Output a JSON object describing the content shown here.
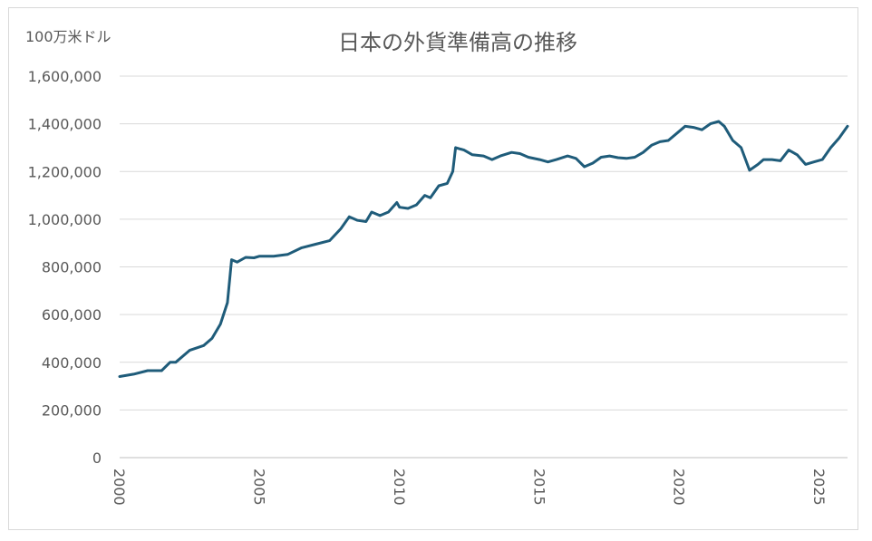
{
  "chart_data": {
    "type": "line",
    "title": "日本の外貨準備高の推移",
    "unit_label": "100万米ドル",
    "xlim": [
      2000,
      2026
    ],
    "ylim": [
      0,
      1600000
    ],
    "y_ticks": [
      "1,600,000",
      "1,400,000",
      "1,200,000",
      "1,000,000",
      "800,000",
      "600,000",
      "400,000",
      "200,000",
      "0"
    ],
    "y_tick_values": [
      1600000,
      1400000,
      1200000,
      1000000,
      800000,
      600000,
      400000,
      200000,
      0
    ],
    "x_ticks": [
      "2000",
      "2005",
      "2010",
      "2015",
      "2020",
      "2025"
    ],
    "x_tick_values": [
      2000,
      2005,
      2010,
      2015,
      2020,
      2025
    ],
    "grid": true,
    "series_color": "#1f5c7a",
    "series": [
      {
        "x": [
          2000.0,
          2000.5,
          2001.0,
          2001.5,
          2001.8,
          2002.0,
          2002.5,
          2003.0,
          2003.3,
          2003.6,
          2003.85,
          2004.0,
          2004.2,
          2004.5,
          2004.8,
          2005.0,
          2005.5,
          2006.0,
          2006.5,
          2007.0,
          2007.5,
          2007.9,
          2008.2,
          2008.5,
          2008.8,
          2009.0,
          2009.3,
          2009.6,
          2009.9,
          2010.0,
          2010.3,
          2010.6,
          2010.9,
          2011.1,
          2011.4,
          2011.7,
          2011.9,
          2012.0,
          2012.3,
          2012.6,
          2013.0,
          2013.3,
          2013.6,
          2014.0,
          2014.3,
          2014.6,
          2015.0,
          2015.3,
          2015.6,
          2016.0,
          2016.3,
          2016.6,
          2016.9,
          2017.2,
          2017.5,
          2017.8,
          2018.1,
          2018.4,
          2018.7,
          2019.0,
          2019.3,
          2019.6,
          2019.9,
          2020.2,
          2020.5,
          2020.8,
          2021.1,
          2021.4,
          2021.6,
          2021.9,
          2022.2,
          2022.5,
          2022.8,
          2023.0,
          2023.3,
          2023.6,
          2023.9,
          2024.2,
          2024.5,
          2024.8,
          2025.1,
          2025.4,
          2025.7,
          2026.0
        ],
        "y": [
          340000,
          350000,
          365000,
          365000,
          400000,
          400000,
          450000,
          470000,
          500000,
          560000,
          650000,
          830000,
          820000,
          840000,
          838000,
          845000,
          845000,
          852000,
          880000,
          895000,
          910000,
          960000,
          1010000,
          995000,
          990000,
          1030000,
          1015000,
          1030000,
          1070000,
          1050000,
          1045000,
          1060000,
          1100000,
          1090000,
          1140000,
          1150000,
          1200000,
          1300000,
          1290000,
          1270000,
          1265000,
          1250000,
          1265000,
          1280000,
          1275000,
          1260000,
          1250000,
          1240000,
          1250000,
          1265000,
          1255000,
          1220000,
          1235000,
          1260000,
          1265000,
          1258000,
          1255000,
          1260000,
          1280000,
          1310000,
          1325000,
          1330000,
          1360000,
          1390000,
          1385000,
          1375000,
          1400000,
          1410000,
          1390000,
          1330000,
          1300000,
          1205000,
          1230000,
          1250000,
          1250000,
          1245000,
          1290000,
          1270000,
          1230000,
          1240000,
          1250000,
          1300000,
          1340000,
          1390000
        ]
      }
    ]
  }
}
